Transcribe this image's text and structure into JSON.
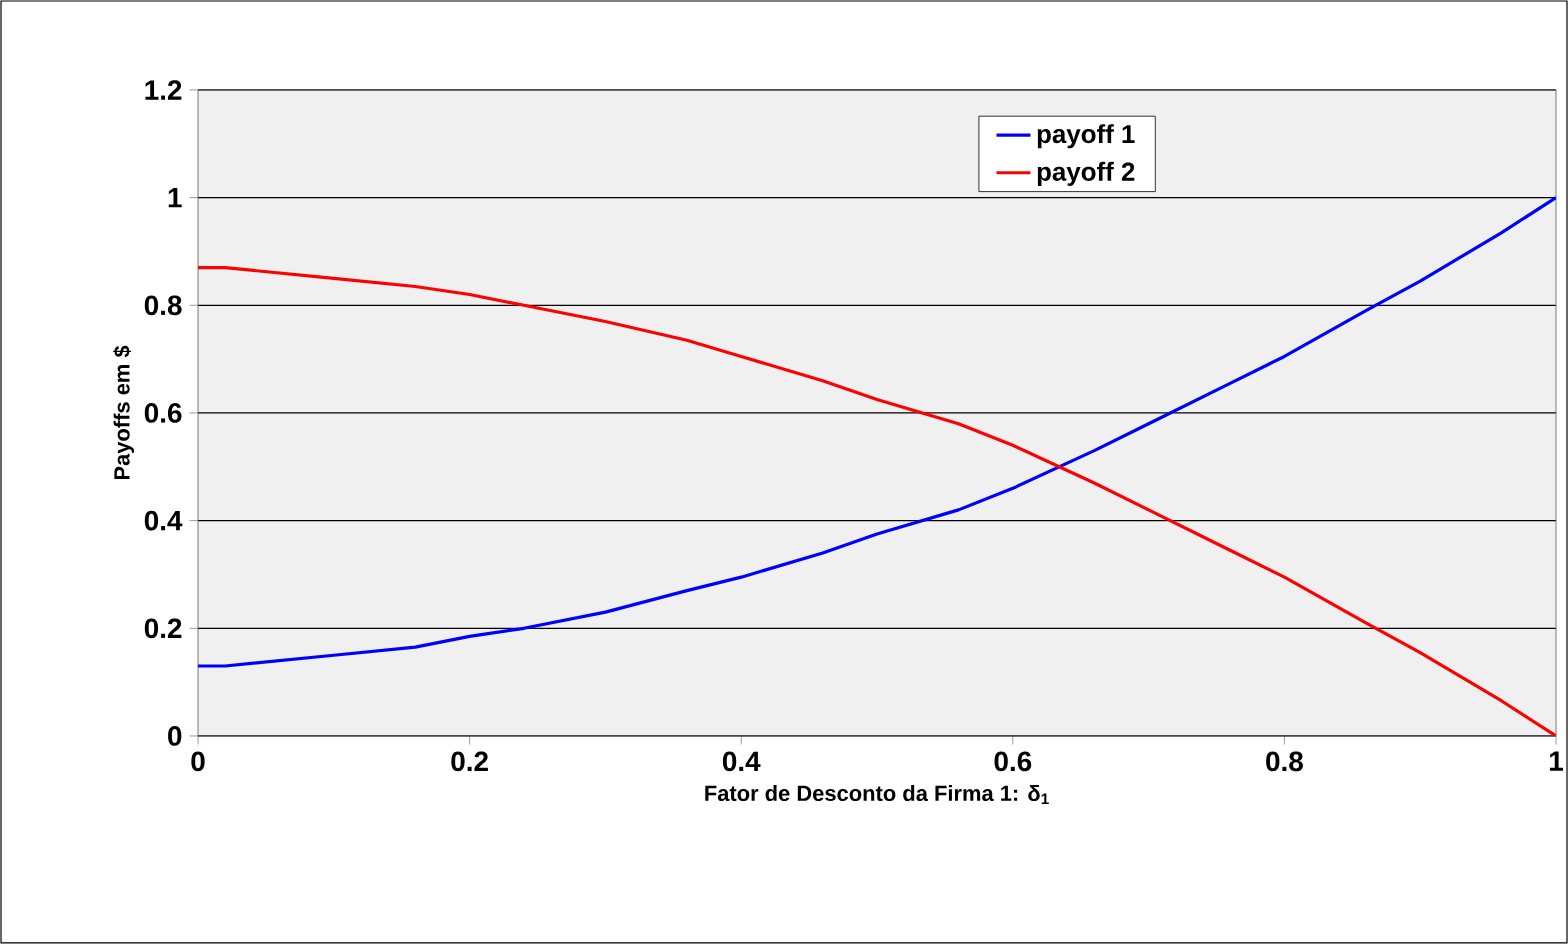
{
  "chart_data": {
    "type": "line",
    "xlabel": "Fator de Desconto da Firma 1: δ$_{1}$",
    "ylabel": "Payoffs em $",
    "x": [
      0,
      0.02,
      0.1,
      0.16,
      0.2,
      0.24,
      0.3,
      0.36,
      0.4,
      0.46,
      0.5,
      0.56,
      0.6,
      0.66,
      0.7,
      0.76,
      0.8,
      0.86,
      0.9,
      0.96,
      1
    ],
    "series": [
      {
        "name": "payoff 1",
        "color": "#0000ff",
        "values": [
          0.13,
          0.13,
          0.15,
          0.165,
          0.185,
          0.2,
          0.23,
          0.27,
          0.295,
          0.34,
          0.375,
          0.42,
          0.46,
          0.53,
          0.58,
          0.655,
          0.705,
          0.79,
          0.845,
          0.935,
          1.0
        ]
      },
      {
        "name": "payoff 2",
        "color": "#ff0000",
        "values": [
          0.87,
          0.87,
          0.85,
          0.835,
          0.82,
          0.8,
          0.77,
          0.735,
          0.705,
          0.66,
          0.625,
          0.58,
          0.54,
          0.47,
          0.42,
          0.345,
          0.295,
          0.21,
          0.155,
          0.065,
          0
        ]
      }
    ],
    "xlim": [
      0,
      1
    ],
    "ylim": [
      0,
      1.2
    ],
    "xticks": [
      0,
      0.2,
      0.4,
      0.6,
      0.8,
      1
    ],
    "yticks": [
      0,
      0.2,
      0.4,
      0.6,
      0.8,
      1,
      1.2
    ],
    "grid": "y",
    "legend": "top",
    "marker": "none",
    "line_style": "solid"
  }
}
